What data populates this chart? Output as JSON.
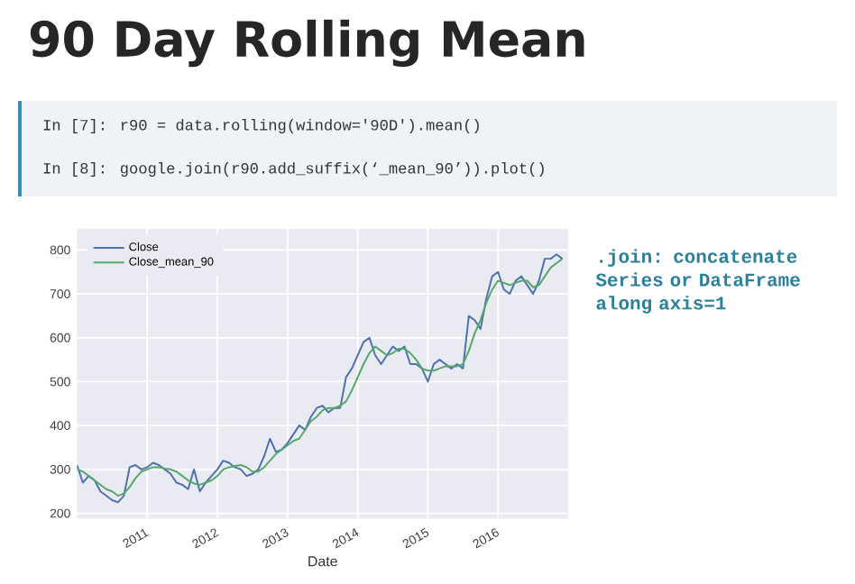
{
  "chart_data": {
    "type": "line",
    "title": "90 Day Rolling Mean",
    "xlabel": "Date",
    "annotations": [
      "In [7]: r90 = data.rolling(window='90D').mean()",
      "In [8]: google.join(r90.add_suffix(‘_mean_90’)).plot()",
      ".join: concatenate Series or DataFrame along axis=1"
    ],
    "x": [
      "2010-01",
      "2010-02",
      "2010-03",
      "2010-04",
      "2010-05",
      "2010-06",
      "2010-07",
      "2010-08",
      "2010-09",
      "2010-10",
      "2010-11",
      "2010-12",
      "2011-01",
      "2011-02",
      "2011-03",
      "2011-04",
      "2011-05",
      "2011-06",
      "2011-07",
      "2011-08",
      "2011-09",
      "2011-10",
      "2011-11",
      "2011-12",
      "2012-01",
      "2012-02",
      "2012-03",
      "2012-04",
      "2012-05",
      "2012-06",
      "2012-07",
      "2012-08",
      "2012-09",
      "2012-10",
      "2012-11",
      "2012-12",
      "2013-01",
      "2013-02",
      "2013-03",
      "2013-04",
      "2013-05",
      "2013-06",
      "2013-07",
      "2013-08",
      "2013-09",
      "2013-10",
      "2013-11",
      "2013-12",
      "2014-01",
      "2014-02",
      "2014-03",
      "2014-04",
      "2014-05",
      "2014-06",
      "2014-07",
      "2014-08",
      "2014-09",
      "2014-10",
      "2014-11",
      "2014-12",
      "2015-01",
      "2015-02",
      "2015-03",
      "2015-04",
      "2015-05",
      "2015-06",
      "2015-07",
      "2015-08",
      "2015-09",
      "2015-10",
      "2015-11",
      "2015-12",
      "2016-01",
      "2016-02",
      "2016-03",
      "2016-04",
      "2016-05",
      "2016-06",
      "2016-07",
      "2016-08",
      "2016-09",
      "2016-10",
      "2016-11",
      "2016-12"
    ],
    "series": [
      {
        "name": "Close",
        "color": "#4c72b0",
        "values": [
          310,
          270,
          285,
          275,
          250,
          240,
          230,
          225,
          240,
          305,
          310,
          300,
          305,
          315,
          310,
          300,
          290,
          270,
          265,
          255,
          300,
          250,
          270,
          285,
          300,
          320,
          315,
          305,
          300,
          285,
          290,
          300,
          330,
          370,
          340,
          345,
          360,
          380,
          400,
          390,
          420,
          440,
          445,
          430,
          440,
          440,
          510,
          530,
          560,
          590,
          600,
          560,
          540,
          560,
          580,
          570,
          580,
          540,
          540,
          530,
          500,
          540,
          550,
          540,
          530,
          540,
          530,
          650,
          640,
          620,
          690,
          740,
          750,
          710,
          700,
          730,
          740,
          720,
          700,
          730,
          780,
          780,
          790,
          780
        ]
      },
      {
        "name": "Close_mean_90",
        "color": "#55a868",
        "values": [
          300,
          295,
          285,
          275,
          265,
          255,
          250,
          240,
          245,
          260,
          280,
          295,
          300,
          305,
          305,
          302,
          300,
          295,
          285,
          275,
          268,
          265,
          270,
          275,
          285,
          300,
          305,
          308,
          310,
          305,
          295,
          295,
          305,
          320,
          335,
          345,
          355,
          365,
          370,
          390,
          410,
          420,
          435,
          440,
          440,
          445,
          455,
          480,
          510,
          540,
          565,
          580,
          570,
          560,
          565,
          575,
          575,
          565,
          550,
          530,
          525,
          525,
          530,
          535,
          535,
          535,
          540,
          570,
          610,
          640,
          680,
          710,
          730,
          725,
          720,
          725,
          730,
          730,
          715,
          720,
          740,
          760,
          770,
          780
        ]
      }
    ],
    "xlim": [
      "2010-01",
      "2017-01"
    ],
    "xticks": [
      "2011",
      "2012",
      "2013",
      "2014",
      "2015",
      "2016"
    ],
    "ylim": [
      188,
      848
    ],
    "yticks": [
      200,
      300,
      400,
      500,
      600,
      700,
      800
    ],
    "grid": true,
    "legend": "top left"
  }
}
